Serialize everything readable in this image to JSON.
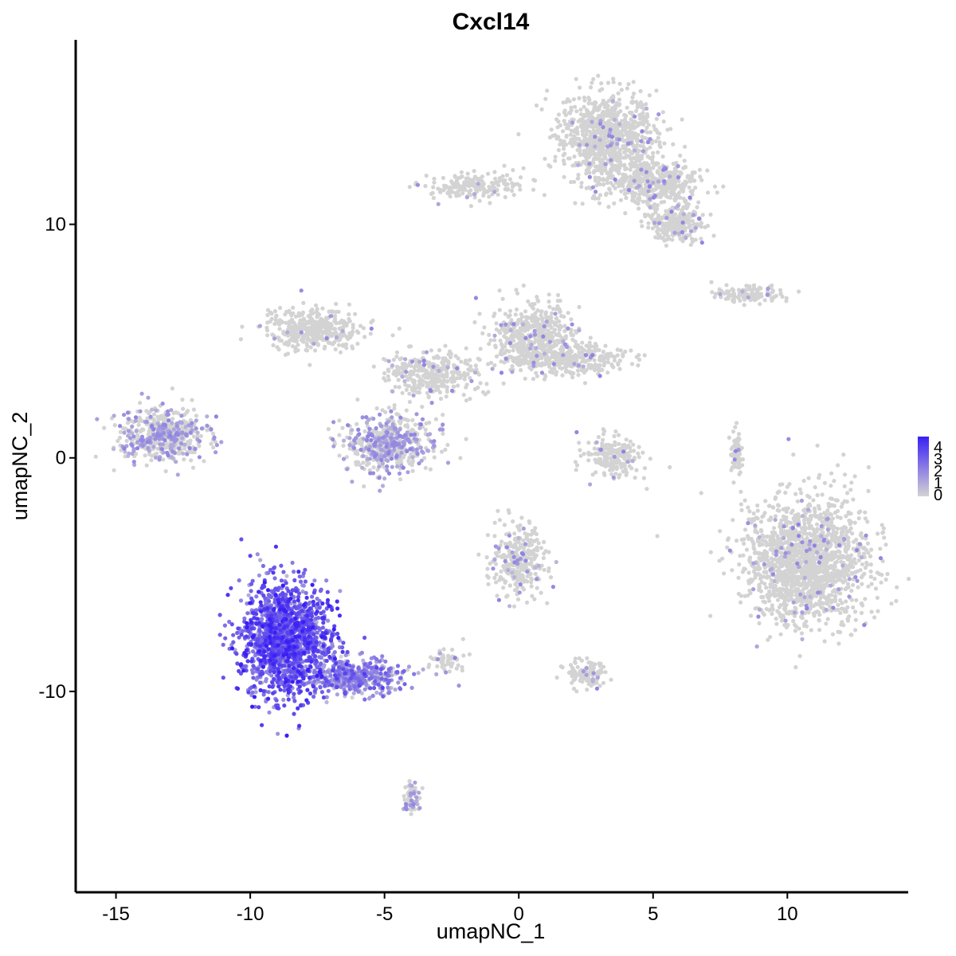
{
  "chart_data": {
    "type": "scatter",
    "title": "Cxcl14",
    "xlabel": "umapNC_1",
    "ylabel": "umapNC_2",
    "xlim": [
      -16.5,
      14.5
    ],
    "ylim": [
      -18.6,
      17.9
    ],
    "x_ticks": [
      -15,
      -10,
      -5,
      0,
      5,
      10
    ],
    "x_tick_labels": [
      "-15",
      "-10",
      "-5",
      "0",
      "5",
      "10"
    ],
    "y_ticks": [
      -10,
      0,
      10
    ],
    "y_tick_labels": [
      "-10",
      "0",
      "10"
    ],
    "grid": false,
    "legend": {
      "placement": "right",
      "type": "colorbar",
      "labels": [
        "4",
        "3",
        "2",
        "1",
        "0"
      ],
      "low_color": "#d3d3d3",
      "high_color": "#3a1ff5"
    },
    "color_scale": {
      "min": 0,
      "max": 4,
      "low": "#d3d3d3",
      "high": "#3a1ff5"
    },
    "clusters": [
      {
        "name": "top-right",
        "cx": 3.3,
        "cy": 13.7,
        "rx": 1.6,
        "ry": 1.8,
        "n": 900,
        "expr": 0.04
      },
      {
        "name": "top-right-arm",
        "cx": 5.0,
        "cy": 11.8,
        "rx": 1.6,
        "ry": 0.8,
        "n": 420,
        "expr": 0.05
      },
      {
        "name": "top-right-lobe",
        "cx": 5.9,
        "cy": 10.1,
        "rx": 0.9,
        "ry": 0.8,
        "n": 260,
        "expr": 0.05
      },
      {
        "name": "top-left-stem",
        "cx": -1.6,
        "cy": 11.6,
        "rx": 1.6,
        "ry": 0.5,
        "n": 180,
        "expr": 0.05
      },
      {
        "name": "center-left",
        "cx": -7.6,
        "cy": 5.5,
        "rx": 1.6,
        "ry": 0.8,
        "n": 380,
        "expr": 0.03
      },
      {
        "name": "center-right",
        "cx": 0.5,
        "cy": 5.2,
        "rx": 1.4,
        "ry": 1.2,
        "n": 480,
        "expr": 0.05
      },
      {
        "name": "center-right-arm",
        "cx": 1.9,
        "cy": 4.2,
        "rx": 1.9,
        "ry": 0.6,
        "n": 320,
        "expr": 0.07
      },
      {
        "name": "center-middle",
        "cx": -3.3,
        "cy": 3.6,
        "rx": 1.7,
        "ry": 0.9,
        "n": 330,
        "expr": 0.05
      },
      {
        "name": "center-lower",
        "cx": -4.9,
        "cy": 0.6,
        "rx": 1.5,
        "ry": 1.1,
        "n": 560,
        "expr": 0.4
      },
      {
        "name": "left",
        "cx": -13.2,
        "cy": 1.0,
        "rx": 1.5,
        "ry": 1.0,
        "n": 520,
        "expr": 0.35
      },
      {
        "name": "top-mid-right",
        "cx": 8.6,
        "cy": 7.0,
        "rx": 1.1,
        "ry": 0.3,
        "n": 130,
        "expr": 0.02
      },
      {
        "name": "small-center",
        "cx": 3.5,
        "cy": 0.0,
        "rx": 0.9,
        "ry": 0.8,
        "n": 200,
        "expr": 0.05
      },
      {
        "name": "right-thin",
        "cx": 8.1,
        "cy": 0.2,
        "rx": 0.2,
        "ry": 0.9,
        "n": 70,
        "expr": 0.05
      },
      {
        "name": "right-large",
        "cx": 10.7,
        "cy": -4.4,
        "rx": 2.1,
        "ry": 2.5,
        "n": 1600,
        "expr": 0.05
      },
      {
        "name": "mid-lower",
        "cx": 0.0,
        "cy": -4.4,
        "rx": 0.9,
        "ry": 1.3,
        "n": 320,
        "expr": 0.08
      },
      {
        "name": "mid-lower-2",
        "cx": -2.6,
        "cy": -8.7,
        "rx": 0.5,
        "ry": 0.4,
        "n": 60,
        "expr": 0.05
      },
      {
        "name": "right-small",
        "cx": 2.5,
        "cy": -9.3,
        "rx": 0.7,
        "ry": 0.5,
        "n": 110,
        "expr": 0.1
      },
      {
        "name": "expression-hotspot",
        "cx": -8.7,
        "cy": -7.8,
        "rx": 1.5,
        "ry": 2.2,
        "n": 1500,
        "expr": 2.6
      },
      {
        "name": "expression-tail",
        "cx": -6.0,
        "cy": -9.4,
        "rx": 1.6,
        "ry": 0.7,
        "n": 400,
        "expr": 1.4
      },
      {
        "name": "bottom-branch",
        "cx": -4.0,
        "cy": -14.6,
        "rx": 0.3,
        "ry": 0.6,
        "n": 70,
        "expr": 0.3
      }
    ],
    "annotations": []
  }
}
